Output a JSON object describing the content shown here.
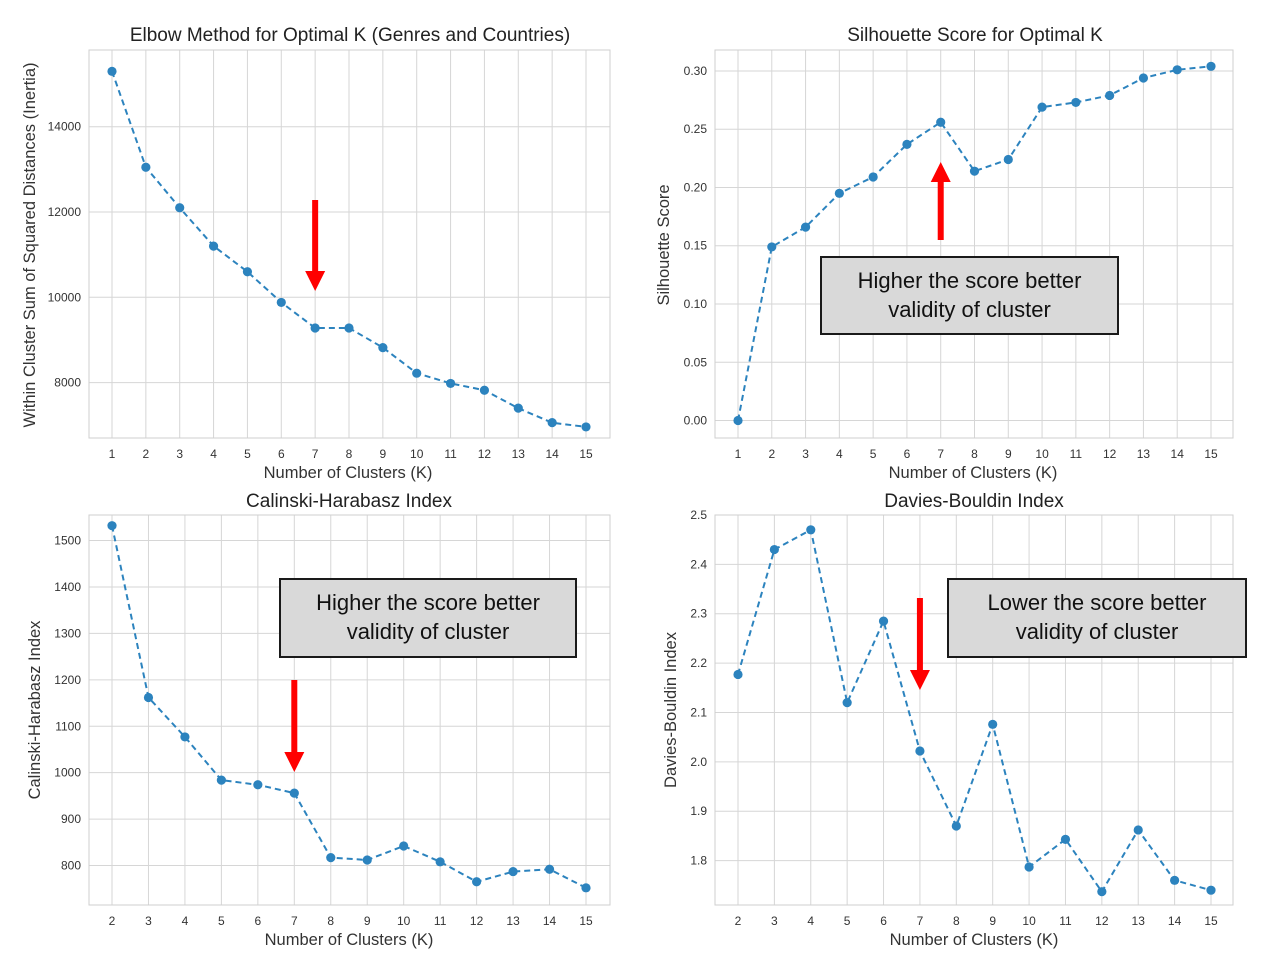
{
  "chart_data": [
    {
      "type": "line",
      "title": "Elbow Method for Optimal K (Genres and Countries)",
      "xlabel": "Number of Clusters (K)",
      "ylabel": "Within Cluster Sum of Squared Distances (Inertia)",
      "x": [
        1,
        2,
        3,
        4,
        5,
        6,
        7,
        8,
        9,
        10,
        11,
        12,
        13,
        14,
        15
      ],
      "y": [
        15300,
        13050,
        12100,
        11200,
        10600,
        9880,
        9280,
        9280,
        8820,
        8220,
        7980,
        7820,
        7400,
        7060,
        6960
      ],
      "yticks": [
        8000,
        10000,
        12000,
        14000
      ],
      "ylim": [
        6700,
        15800
      ],
      "grid": true,
      "marker_color": "#2c83be",
      "annotation_arrow": {
        "at_x": 7,
        "direction": "down",
        "color": "#ff0000"
      }
    },
    {
      "type": "line",
      "title": "Silhouette Score for Optimal K",
      "xlabel": "Number of Clusters (K)",
      "ylabel": "Silhouette Score",
      "x": [
        1,
        2,
        3,
        4,
        5,
        6,
        7,
        8,
        9,
        10,
        11,
        12,
        13,
        14,
        15
      ],
      "y": [
        0.0,
        0.149,
        0.166,
        0.195,
        0.209,
        0.237,
        0.256,
        0.214,
        0.224,
        0.269,
        0.273,
        0.279,
        0.294,
        0.301,
        0.304
      ],
      "yticks": [
        "0.00",
        "0.05",
        "0.10",
        "0.15",
        "0.20",
        "0.25",
        "0.30"
      ],
      "ylim": [
        -0.015,
        0.318
      ],
      "grid": true,
      "marker_color": "#2c83be",
      "annotation_arrow": {
        "at_x": 7,
        "direction": "up",
        "color": "#ff0000"
      },
      "note_lines": [
        "Higher the score better",
        "validity of cluster"
      ]
    },
    {
      "type": "line",
      "title": "Calinski-Harabasz Index",
      "xlabel": "Number of Clusters (K)",
      "ylabel": "Calinski-Harabasz Index",
      "x": [
        2,
        3,
        4,
        5,
        6,
        7,
        8,
        9,
        10,
        11,
        12,
        13,
        14,
        15
      ],
      "y": [
        1532,
        1162,
        1077,
        984,
        974,
        956,
        817,
        812,
        842,
        808,
        765,
        787,
        792,
        752
      ],
      "yticks": [
        800,
        900,
        1000,
        1100,
        1200,
        1300,
        1400,
        1500
      ],
      "ylim": [
        715,
        1555
      ],
      "grid": true,
      "marker_color": "#2c83be",
      "annotation_arrow": {
        "at_x": 7,
        "direction": "down",
        "color": "#ff0000"
      },
      "note_lines": [
        "Higher the score better",
        "validity of cluster"
      ]
    },
    {
      "type": "line",
      "title": "Davies-Bouldin Index",
      "xlabel": "Number of Clusters (K)",
      "ylabel": "Davies-Bouldin Index",
      "x": [
        2,
        3,
        4,
        5,
        6,
        7,
        8,
        9,
        10,
        11,
        12,
        13,
        14,
        15
      ],
      "y": [
        2.177,
        2.43,
        2.47,
        2.12,
        2.285,
        2.022,
        1.87,
        2.076,
        1.787,
        1.843,
        1.737,
        1.862,
        1.76,
        1.74
      ],
      "yticks": [
        "1.8",
        "1.9",
        "2.0",
        "2.1",
        "2.2",
        "2.3",
        "2.4",
        "2.5"
      ],
      "ylim": [
        1.71,
        2.5
      ],
      "grid": true,
      "marker_color": "#2c83be",
      "annotation_arrow": {
        "at_x": 7,
        "direction": "down",
        "color": "#ff0000"
      },
      "note_lines": [
        "Lower the score better",
        "validity of cluster"
      ]
    }
  ]
}
